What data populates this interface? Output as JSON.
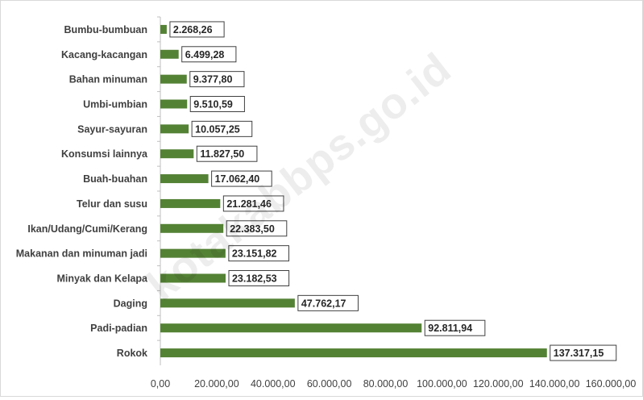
{
  "chart_data": {
    "type": "bar",
    "orientation": "horizontal",
    "categories": [
      "Bumbu-bumbuan",
      "Kacang-kacangan",
      "Bahan minuman",
      "Umbi-umbian",
      "Sayur-sayuran",
      "Konsumsi lainnya",
      "Buah-buahan",
      "Telur dan susu",
      "Ikan/Udang/Cumi/Kerang",
      "Makanan dan minuman jadi",
      "Minyak dan Kelapa",
      "Daging",
      "Padi-padian",
      "Rokok"
    ],
    "values": [
      2268.26,
      6499.28,
      9377.8,
      9510.59,
      10057.25,
      11827.5,
      17062.4,
      21281.46,
      22383.5,
      23151.82,
      23182.53,
      47762.17,
      92811.94,
      137317.15
    ],
    "data_labels": [
      "2.268,26",
      "6.499,28",
      "9.377,80",
      "9.510,59",
      "10.057,25",
      "11.827,50",
      "17.062,40",
      "21.281,46",
      "22.383,50",
      "23.151,82",
      "23.182,53",
      "47.762,17",
      "92.811,94",
      "137.317,15"
    ],
    "x_ticks": [
      "0,00",
      "20.000,00",
      "40.000,00",
      "60.000,00",
      "80.000,00",
      "100.000,00",
      "120.000,00",
      "140.000,00",
      "160.000,00"
    ],
    "xlim": [
      0,
      160000
    ],
    "bar_color": "#548235",
    "grid": false,
    "title": "",
    "xlabel": "",
    "ylabel": ""
  },
  "watermark": "kotakabbps.go.id"
}
